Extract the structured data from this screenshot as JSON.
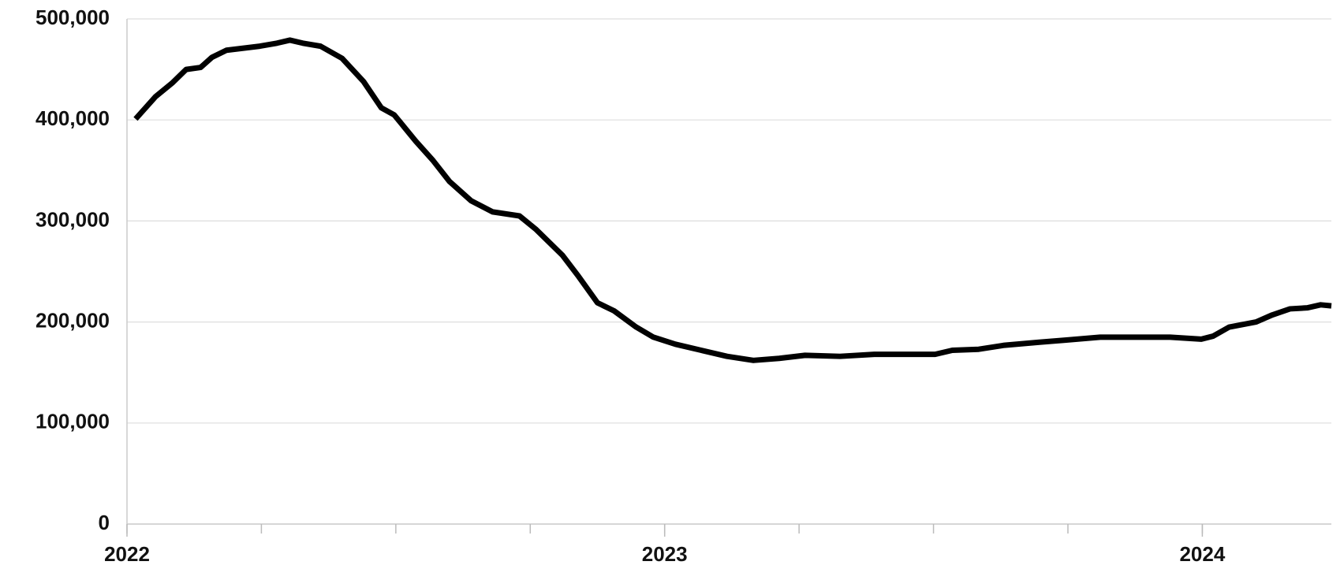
{
  "chart_data": {
    "type": "line",
    "x": [
      2022.016,
      2022.053,
      2022.085,
      2022.11,
      2022.137,
      2022.158,
      2022.185,
      2022.247,
      2022.279,
      2022.303,
      2022.327,
      2022.36,
      2022.4,
      2022.44,
      2022.473,
      2022.497,
      2022.537,
      2022.569,
      2022.6,
      2022.64,
      2022.68,
      2022.73,
      2022.76,
      2022.81,
      2022.84,
      2022.875,
      2022.906,
      2022.947,
      2022.979,
      2023.02,
      2023.068,
      2023.116,
      2023.165,
      2023.213,
      2023.261,
      2023.326,
      2023.39,
      2023.455,
      2023.503,
      2023.535,
      2023.584,
      2023.632,
      2023.697,
      2023.745,
      2023.81,
      2023.874,
      2023.94,
      2023.998,
      2024.02,
      2024.05,
      2024.1,
      2024.13,
      2024.163,
      2024.195,
      2024.22,
      2024.24
    ],
    "series": [
      {
        "color": "#000000",
        "values": [
          401000,
          423000,
          437000,
          450000,
          452000,
          462000,
          469000,
          473000,
          476000,
          479000,
          476000,
          473000,
          461000,
          438000,
          412000,
          405000,
          379000,
          360000,
          339000,
          320000,
          309000,
          305000,
          292000,
          266000,
          245000,
          219000,
          211000,
          195000,
          185000,
          178000,
          172000,
          166000,
          162000,
          164000,
          167000,
          166000,
          168000,
          168000,
          168000,
          172000,
          173000,
          177000,
          180000,
          182000,
          185000,
          185000,
          185000,
          183000,
          186000,
          195000,
          200000,
          207000,
          213000,
          214000,
          217000,
          216000
        ]
      }
    ],
    "xlim": [
      2022,
      2024.24
    ],
    "xticks": [
      2022,
      2023,
      2024
    ],
    "ylim": [
      0,
      500000
    ],
    "yticks": [
      0,
      {
        "value": 100000,
        "label": "100,000"
      },
      {
        "value": 200000,
        "label": "200,000"
      },
      {
        "value": 300000,
        "label": "300,000"
      },
      {
        "value": 400000,
        "label": "400,000"
      },
      {
        "value": 500000,
        "label": "500,000"
      }
    ],
    "grid": true
  }
}
